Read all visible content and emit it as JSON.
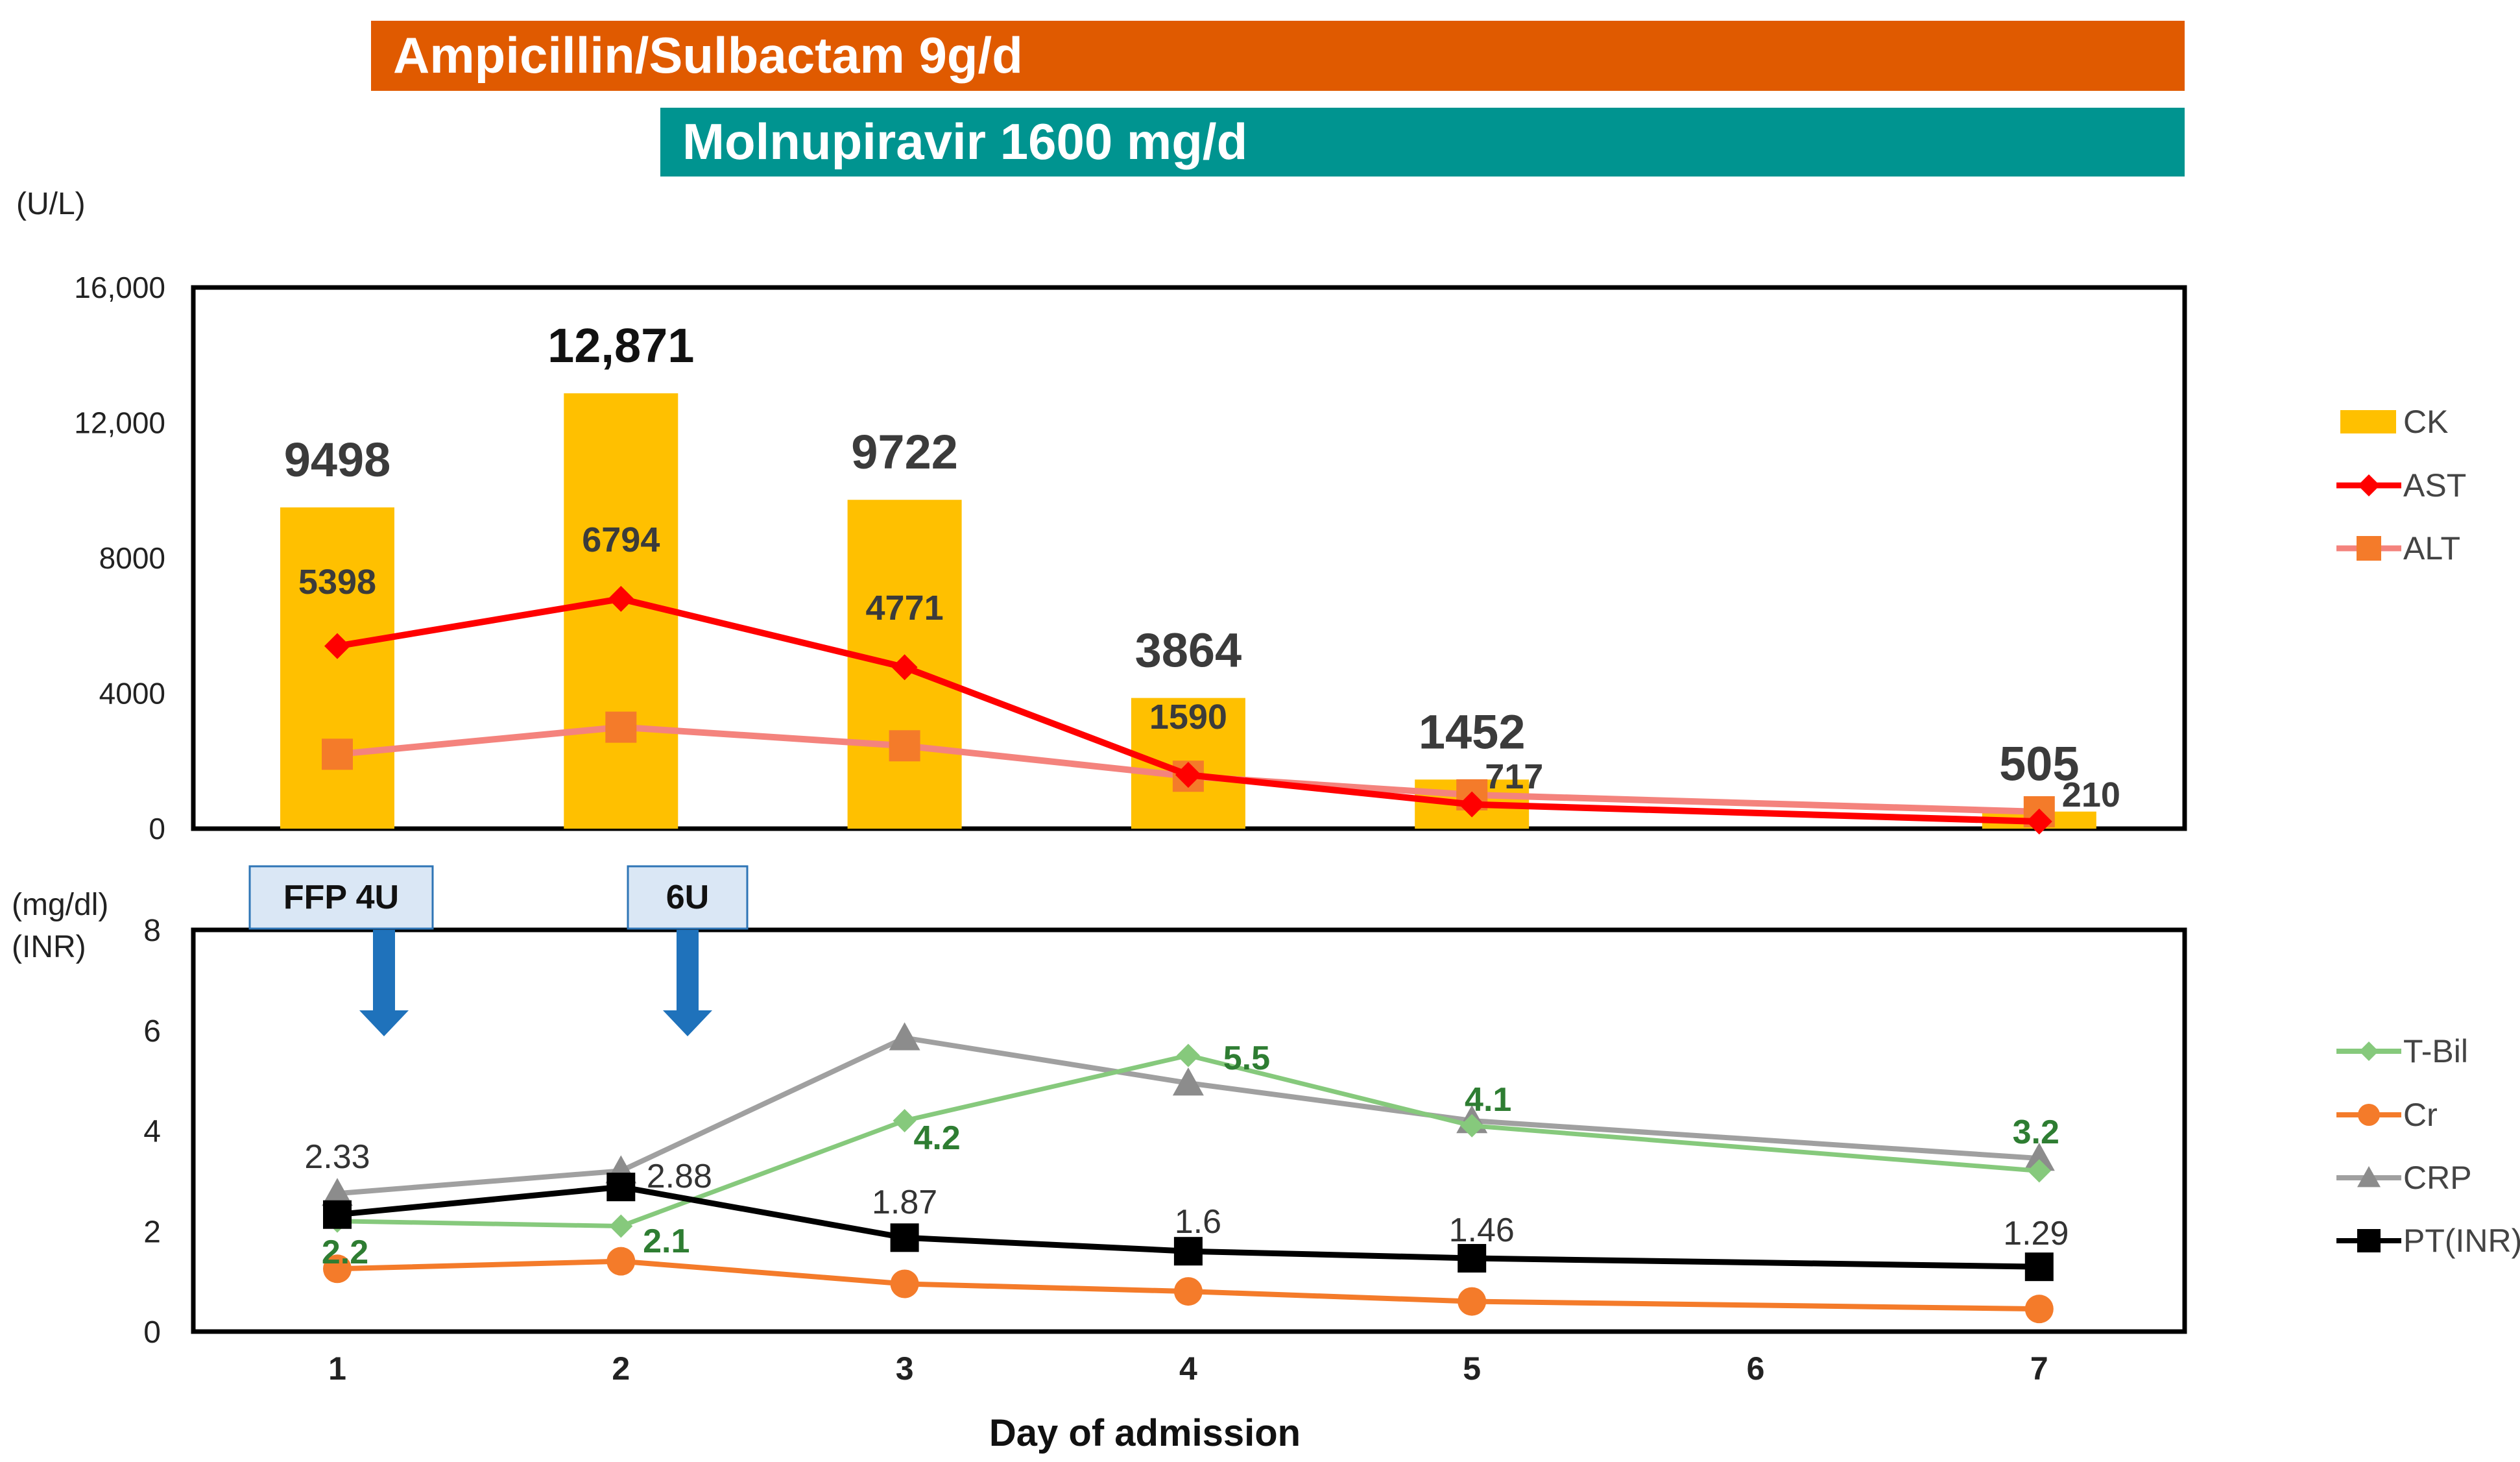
{
  "drug_bars": [
    {
      "label": "Ampicillin/Sulbactam 9g/d",
      "color": "#E05A00",
      "start_day": 1,
      "end_day": 7.5
    },
    {
      "label": "Molnupiravir   1600 mg/d",
      "color": "#009490",
      "start_day": 2,
      "end_day": 7.5
    }
  ],
  "ffp_boxes": [
    {
      "label": "FFP  4U",
      "day": 1
    },
    {
      "label": "6U",
      "day": 2
    }
  ],
  "xlabel": "Day of admission",
  "x_ticks": [
    "1",
    "2",
    "3",
    "4",
    "5",
    "6",
    "7"
  ],
  "colors": {
    "ck": "#FFC000",
    "ast": "#FF0000",
    "alt": "#F4837D",
    "tbil": "#86C97C",
    "cr": "#F47B2A",
    "crp": "#A0A0A0",
    "pt": "#000000",
    "tbil_label": "#2E7D32",
    "ffp_fill": "#DAE7F5",
    "ffp_border": "#2E75B6",
    "arrow": "#1F72BB"
  },
  "chart_data": [
    {
      "type": "bar",
      "unit_label": "(U/L)",
      "ylim": [
        0,
        16000
      ],
      "y_ticks": [
        "0",
        "4000",
        "8000",
        "12,000",
        "16,000"
      ],
      "y_tick_values": [
        0,
        4000,
        8000,
        12000,
        16000
      ],
      "grid": false,
      "legend_position": "right",
      "series": [
        {
          "key": "ck",
          "name": "CK",
          "kind": "bar",
          "x": [
            1,
            2,
            3,
            4,
            5,
            7
          ],
          "values": [
            9498,
            12871,
            9722,
            3864,
            1452,
            505
          ],
          "labels": [
            "9498",
            "12,871",
            "9722",
            "3864",
            "1452",
            "505"
          ]
        },
        {
          "key": "ast",
          "name": "AST",
          "kind": "line",
          "marker": "diamond",
          "x": [
            1,
            2,
            3,
            4,
            5,
            7
          ],
          "values": [
            5398,
            6794,
            4771,
            1590,
            717,
            210
          ],
          "labels": [
            "5398",
            "6794",
            "4771",
            "1590",
            "717",
            "210"
          ]
        },
        {
          "key": "alt",
          "name": "ALT",
          "kind": "line",
          "marker": "square",
          "x": [
            1,
            2,
            3,
            4,
            5,
            7
          ],
          "values": [
            2200,
            3000,
            2450,
            1550,
            1000,
            500
          ]
        }
      ]
    },
    {
      "type": "line",
      "unit_label": [
        "(mg/dl)",
        "(INR)"
      ],
      "ylim": [
        0,
        8
      ],
      "y_ticks": [
        "0",
        "2",
        "4",
        "6",
        "8"
      ],
      "y_tick_values": [
        0,
        2,
        4,
        6,
        8
      ],
      "grid": false,
      "legend_position": "right",
      "series": [
        {
          "key": "tbil",
          "name": "T-Bil",
          "marker": "diamond",
          "x": [
            1,
            2,
            3,
            4,
            5,
            7
          ],
          "values": [
            2.2,
            2.1,
            4.2,
            5.5,
            4.1,
            3.2
          ],
          "labels": [
            "2.2",
            "2.1",
            "4.2",
            "5.5",
            "4.1",
            "3.2"
          ]
        },
        {
          "key": "cr",
          "name": "Cr",
          "marker": "circle",
          "x": [
            1,
            2,
            3,
            4,
            5,
            7
          ],
          "values": [
            1.25,
            1.4,
            0.95,
            0.8,
            0.6,
            0.45
          ]
        },
        {
          "key": "crp",
          "name": "CRP",
          "marker": "triangle",
          "x": [
            1,
            2,
            3,
            4,
            5,
            7
          ],
          "values": [
            2.75,
            3.2,
            5.85,
            4.95,
            4.2,
            3.45
          ]
        },
        {
          "key": "pt",
          "name": "PT(INR)",
          "marker": "square",
          "x": [
            1,
            2,
            3,
            4,
            5,
            7
          ],
          "values": [
            2.33,
            2.88,
            1.87,
            1.6,
            1.46,
            1.29
          ],
          "labels": [
            "2.33",
            "2.88",
            "1.87",
            "1.6",
            "1.46",
            "1.29"
          ]
        }
      ]
    }
  ]
}
